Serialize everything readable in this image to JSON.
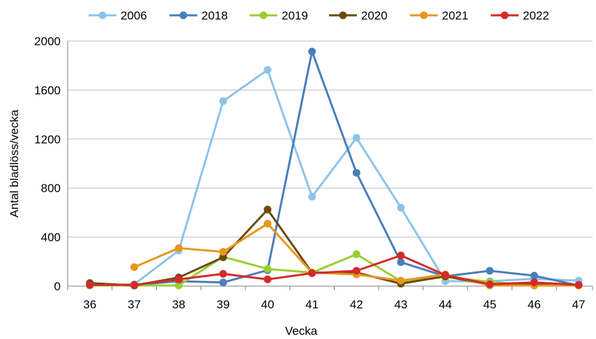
{
  "chart_data": {
    "type": "line",
    "title": "",
    "xlabel": "Vecka",
    "ylabel": "Antal bladlöss/vecka",
    "x": [
      36,
      37,
      38,
      39,
      40,
      41,
      42,
      43,
      44,
      45,
      46,
      47
    ],
    "x_tick_labels": [
      "36",
      "37",
      "38",
      "39",
      "40",
      "41",
      "42",
      "43",
      "44",
      "45",
      "46",
      "47"
    ],
    "y_ticks": [
      0,
      400,
      800,
      1200,
      1600,
      2000
    ],
    "y_tick_labels": [
      "0",
      "400",
      "800",
      "1200",
      "1600",
      "2000"
    ],
    "ylim": [
      0,
      2000
    ],
    "grid": "horizontal",
    "legend_position": "top",
    "series": [
      {
        "name": "2006",
        "color": "#8DC3EA",
        "values": [
          5,
          15,
          290,
          1510,
          1765,
          730,
          1210,
          640,
          40,
          40,
          60,
          45
        ]
      },
      {
        "name": "2018",
        "color": "#4A7EBB",
        "values": [
          5,
          10,
          40,
          30,
          130,
          1915,
          925,
          195,
          80,
          125,
          85,
          5
        ]
      },
      {
        "name": "2019",
        "color": "#9ACD32",
        "values": [
          5,
          5,
          5,
          240,
          140,
          110,
          260,
          40,
          75,
          35,
          5,
          5
        ]
      },
      {
        "name": "2020",
        "color": "#6B4A0E",
        "values": [
          25,
          5,
          70,
          235,
          625,
          110,
          110,
          20,
          80,
          10,
          20,
          10
        ]
      },
      {
        "name": "2021",
        "color": "#E8961E",
        "values": [
          null,
          155,
          310,
          280,
          510,
          110,
          95,
          45,
          95,
          5,
          5,
          5
        ]
      },
      {
        "name": "2022",
        "color": "#D42A2A",
        "values": [
          10,
          10,
          55,
          100,
          55,
          105,
          125,
          250,
          90,
          15,
          30,
          10
        ]
      }
    ]
  }
}
